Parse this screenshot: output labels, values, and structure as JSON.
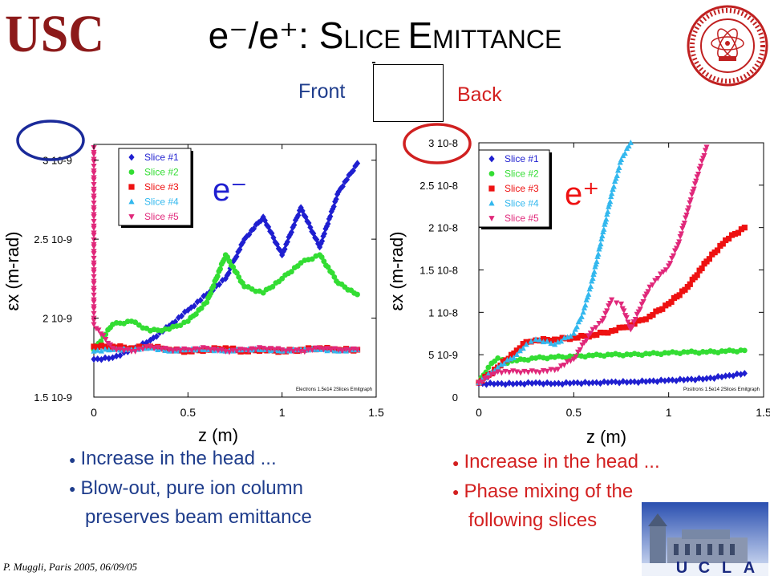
{
  "header": {
    "logo_left": "USC",
    "title_main": "e⁻/e⁺: ",
    "title_s": "S",
    "title_lice": "LICE ",
    "title_e": "E",
    "title_mittance": "MITTANCE"
  },
  "slice_diagram": {
    "front": "Front",
    "back": "Back"
  },
  "colors": {
    "slice1": "#1f1fd0",
    "slice2": "#33dd33",
    "slice3": "#ee1111",
    "slice4": "#33b8ee",
    "slice5": "#e0287a",
    "left_text": "#1f3d8c",
    "right_text": "#d32020"
  },
  "chart_data": [
    {
      "type": "scatter",
      "particle": "e⁻",
      "xlabel": "z (m)",
      "ylabel": "εx (m-rad)",
      "xlim": [
        0,
        1.5
      ],
      "ylim": [
        1.5e-09,
        3.1e-09
      ],
      "xticks": [
        0,
        0.5,
        1,
        1.5
      ],
      "xtick_labels": [
        "0",
        "0.5",
        "1",
        "1.5"
      ],
      "yticks": [
        1.5e-09,
        2e-09,
        2.5e-09,
        3e-09
      ],
      "ytick_labels": [
        "1.5 10-9",
        "2 10-9",
        "2.5 10-9",
        "3 10-9"
      ],
      "circled_tick": "3 10-9",
      "legend_position": "top-left",
      "footnote": "Electrons 1.5e14 2Slices Emitgraph",
      "series": [
        {
          "name": "Slice #1",
          "marker": "diamond",
          "x": [
            0,
            0.1,
            0.2,
            0.3,
            0.4,
            0.5,
            0.6,
            0.7,
            0.8,
            0.9,
            1.0,
            1.1,
            1.2,
            1.3,
            1.4
          ],
          "y": [
            1.74e-09,
            1.75e-09,
            1.8e-09,
            1.86e-09,
            1.95e-09,
            2.05e-09,
            2.15e-09,
            2.25e-09,
            2.5e-09,
            2.64e-09,
            2.4e-09,
            2.7e-09,
            2.45e-09,
            2.8e-09,
            2.98e-09
          ]
        },
        {
          "name": "Slice #2",
          "marker": "circle",
          "x": [
            0,
            0.1,
            0.2,
            0.3,
            0.4,
            0.5,
            0.6,
            0.7,
            0.8,
            0.9,
            1.0,
            1.1,
            1.2,
            1.3,
            1.4
          ],
          "y": [
            1.8e-09,
            1.96e-09,
            1.98e-09,
            1.92e-09,
            1.93e-09,
            1.98e-09,
            2.1e-09,
            2.4e-09,
            2.2e-09,
            2.16e-09,
            2.25e-09,
            2.35e-09,
            2.4e-09,
            2.22e-09,
            2.15e-09
          ]
        },
        {
          "name": "Slice #3",
          "marker": "square",
          "x": [
            0,
            0.1,
            0.2,
            0.3,
            0.4,
            0.5,
            0.6,
            0.7,
            0.8,
            0.9,
            1.0,
            1.1,
            1.2,
            1.3,
            1.4
          ],
          "y": [
            1.82e-09,
            1.82e-09,
            1.81e-09,
            1.82e-09,
            1.8e-09,
            1.79e-09,
            1.8e-09,
            1.81e-09,
            1.79e-09,
            1.8e-09,
            1.79e-09,
            1.8e-09,
            1.81e-09,
            1.8e-09,
            1.8e-09
          ]
        },
        {
          "name": "Slice #4",
          "marker": "triangle-up",
          "x": [
            0,
            0.1,
            0.2,
            0.3,
            0.4,
            0.5,
            0.6,
            0.7,
            0.8,
            0.9,
            1.0,
            1.1,
            1.2,
            1.3,
            1.4
          ],
          "y": [
            1.79e-09,
            1.8e-09,
            1.8e-09,
            1.81e-09,
            1.79e-09,
            1.8e-09,
            1.8e-09,
            1.79e-09,
            1.8e-09,
            1.8e-09,
            1.79e-09,
            1.8e-09,
            1.8e-09,
            1.79e-09,
            1.8e-09
          ]
        },
        {
          "name": "Slice #5",
          "marker": "triangle-down",
          "x": [
            0,
            0,
            0,
            0.1,
            0.2,
            0.3,
            0.4,
            0.5,
            0.6,
            0.7,
            0.8,
            0.9,
            1.0,
            1.1,
            1.2,
            1.3,
            1.4
          ],
          "y": [
            3.08e-09,
            2.38e-09,
            1.96e-09,
            1.81e-09,
            1.79e-09,
            1.82e-09,
            1.8e-09,
            1.8e-09,
            1.81e-09,
            1.79e-09,
            1.8e-09,
            1.81e-09,
            1.8e-09,
            1.79e-09,
            1.81e-09,
            1.8e-09,
            1.8e-09
          ]
        }
      ]
    },
    {
      "type": "scatter",
      "particle": "e⁺",
      "xlabel": "z (m)",
      "ylabel": "εx (m-rad)",
      "xlim": [
        0,
        1.5
      ],
      "ylim": [
        0,
        3e-08
      ],
      "xticks": [
        0,
        0.5,
        1,
        1.5
      ],
      "xtick_labels": [
        "0",
        "0.5",
        "1",
        "1.5"
      ],
      "yticks": [
        0,
        5e-09,
        1e-08,
        1.5e-08,
        2e-08,
        2.5e-08,
        3e-08
      ],
      "ytick_labels": [
        "0",
        "5 10-9",
        "1 10-8",
        "1.5 10-8",
        "2 10-8",
        "2.5 10-8",
        "3 10-8"
      ],
      "circled_tick": "3 10-8",
      "legend_position": "top-left",
      "footnote": "Positrons 1.5e14 2Slices Emitgraph",
      "series": [
        {
          "name": "Slice #1",
          "marker": "diamond",
          "x": [
            0,
            0.1,
            0.2,
            0.3,
            0.4,
            0.5,
            0.6,
            0.7,
            0.8,
            0.9,
            1.0,
            1.1,
            1.2,
            1.3,
            1.4
          ],
          "y": [
            1.6e-09,
            1.6e-09,
            1.6e-09,
            1.7e-09,
            1.6e-09,
            1.7e-09,
            1.7e-09,
            1.8e-09,
            1.8e-09,
            1.9e-09,
            2e-09,
            2.1e-09,
            2.2e-09,
            2.5e-09,
            2.8e-09
          ]
        },
        {
          "name": "Slice #2",
          "marker": "circle",
          "x": [
            0,
            0.05,
            0.1,
            0.15,
            0.2,
            0.3,
            0.4,
            0.5,
            0.6,
            0.7,
            0.8,
            0.9,
            1.0,
            1.1,
            1.2,
            1.3,
            1.4
          ],
          "y": [
            1.7e-09,
            3.5e-09,
            4.6e-09,
            4e-09,
            4.3e-09,
            4.6e-09,
            4.7e-09,
            4.8e-09,
            4.9e-09,
            5e-09,
            5e-09,
            5.1e-09,
            5.2e-09,
            5.3e-09,
            5.3e-09,
            5.4e-09,
            5.5e-09
          ]
        },
        {
          "name": "Slice #3",
          "marker": "square",
          "x": [
            0,
            0.1,
            0.2,
            0.25,
            0.3,
            0.4,
            0.5,
            0.6,
            0.7,
            0.8,
            0.9,
            1.0,
            1.1,
            1.2,
            1.3,
            1.4
          ],
          "y": [
            1.7e-09,
            3.5e-09,
            5.5e-09,
            6.5e-09,
            6.7e-09,
            6.8e-09,
            7e-09,
            7.3e-09,
            7.8e-09,
            8.5e-09,
            9.5e-09,
            1.1e-08,
            1.3e-08,
            1.6e-08,
            1.85e-08,
            2e-08
          ]
        },
        {
          "name": "Slice #4",
          "marker": "triangle-up",
          "x": [
            0,
            0.1,
            0.2,
            0.25,
            0.3,
            0.4,
            0.5,
            0.55,
            0.6,
            0.65,
            0.7,
            0.75,
            0.8
          ],
          "y": [
            1.7e-09,
            3.5e-09,
            5e-09,
            6.2e-09,
            6.8e-09,
            6.2e-09,
            7.5e-09,
            1e-08,
            1.4e-08,
            1.9e-08,
            2.4e-08,
            2.8e-08,
            3e-08
          ]
        },
        {
          "name": "Slice #5",
          "marker": "triangle-down",
          "x": [
            0,
            0.1,
            0.2,
            0.3,
            0.4,
            0.5,
            0.6,
            0.65,
            0.7,
            0.75,
            0.8,
            0.9,
            1.0,
            1.05,
            1.1,
            1.15,
            1.2
          ],
          "y": [
            1.7e-09,
            3e-09,
            3e-09,
            3e-09,
            3.2e-09,
            4.5e-09,
            8e-09,
            9e-09,
            1.15e-08,
            1.1e-08,
            8e-09,
            1.3e-08,
            1.55e-08,
            1.8e-08,
            2.2e-08,
            2.6e-08,
            2.95e-08
          ]
        }
      ]
    }
  ],
  "left_bullets": {
    "b1": "Increase in the head ...",
    "b2": "Blow-out, pure ion column",
    "b2_cont": "preserves beam emittance"
  },
  "right_bullets": {
    "b1": "Increase in the head ...",
    "b2": "Phase mixing of the",
    "b2_cont": "following slices"
  },
  "footer": {
    "text": "P. Muggli, Paris 2005, 06/09/05"
  },
  "ucla_logo": {
    "letters": [
      "U",
      "C",
      "L",
      "A"
    ]
  }
}
